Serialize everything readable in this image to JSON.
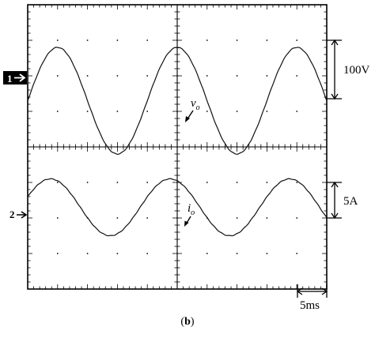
{
  "chart_data": {
    "type": "line",
    "time_per_div_ms": 5,
    "h_divs": 10,
    "v_divs": 8,
    "channels": [
      {
        "marker": "1",
        "label_main": "v",
        "label_sub": "o",
        "scale_label": "100V",
        "volts_per_div": 100,
        "amplitude_divs": 1.5,
        "offset_divs": 0.7,
        "period_ms": 20,
        "peak_time_ms": 5.0
      },
      {
        "marker": "2",
        "label_main": "i",
        "label_sub": "o",
        "scale_label": "5A",
        "amps_per_div": 5,
        "amplitude_divs": 0.8,
        "offset_divs": 0.3,
        "period_ms": 20,
        "peak_time_ms": 3.8
      }
    ],
    "time_scale_label": "5ms"
  },
  "caption": {
    "open": "(",
    "letter": "b",
    "close": ")"
  }
}
